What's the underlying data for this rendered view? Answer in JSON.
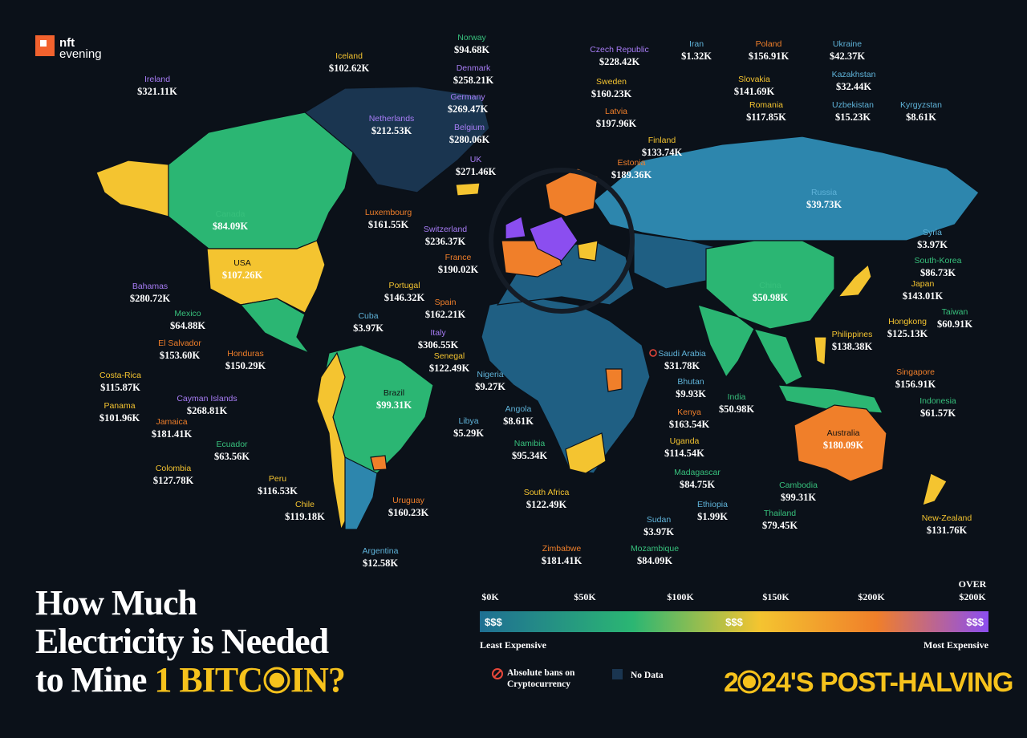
{
  "logo": {
    "line1": "nft",
    "line2": "evening"
  },
  "title": {
    "line1": "How Much",
    "line2": "Electricity is Needed",
    "line3": "to Mine",
    "highlight_start": "1 BITC",
    "highlight_end": "IN?"
  },
  "countries": [
    {
      "name": "Norway",
      "cost": "$94.68K"
    },
    {
      "name": "Czech Republic",
      "cost": "$228.42K"
    },
    {
      "name": "Iran",
      "cost": "$1.32K"
    },
    {
      "name": "Poland",
      "cost": "$156.91K"
    },
    {
      "name": "Ukraine",
      "cost": "$42.37K"
    },
    {
      "name": "Iceland",
      "cost": "$102.62K"
    },
    {
      "name": "Ireland",
      "cost": "$321.11K"
    },
    {
      "name": "Denmark",
      "cost": "$258.21K"
    },
    {
      "name": "Sweden",
      "cost": "$160.23K"
    },
    {
      "name": "Slovakia",
      "cost": "$141.69K"
    },
    {
      "name": "Kazakhstan",
      "cost": "$32.44K"
    },
    {
      "name": "Germany",
      "cost": "$269.47K"
    },
    {
      "name": "Netherlands",
      "cost": "$212.53K"
    },
    {
      "name": "Romania",
      "cost": "$117.85K"
    },
    {
      "name": "Uzbekistan",
      "cost": "$15.23K"
    },
    {
      "name": "Kyrgyzstan",
      "cost": "$8.61K"
    },
    {
      "name": "Latvia",
      "cost": "$197.96K"
    },
    {
      "name": "Belgium",
      "cost": "$280.06K"
    },
    {
      "name": "Finland",
      "cost": "$133.74K"
    },
    {
      "name": "UK",
      "cost": "$271.46K"
    },
    {
      "name": "Estonia",
      "cost": "$189.36K"
    },
    {
      "name": "Russia",
      "cost": "$39.73K"
    },
    {
      "name": "Luxembourg",
      "cost": "$161.55K"
    },
    {
      "name": "Canada",
      "cost": "$84.09K"
    },
    {
      "name": "Switzerland",
      "cost": "$236.37K"
    },
    {
      "name": "Syria",
      "cost": "$3.97K"
    },
    {
      "name": "France",
      "cost": "$190.02K"
    },
    {
      "name": "South-Korea",
      "cost": "$86.73K"
    },
    {
      "name": "USA",
      "cost": "$107.26K"
    },
    {
      "name": "Portugal",
      "cost": "$146.32K"
    },
    {
      "name": "China",
      "cost": "$50.98K"
    },
    {
      "name": "Japan",
      "cost": "$143.01K"
    },
    {
      "name": "Bahamas",
      "cost": "$280.72K"
    },
    {
      "name": "Spain",
      "cost": "$162.21K"
    },
    {
      "name": "Taiwan",
      "cost": "$60.91K"
    },
    {
      "name": "Mexico",
      "cost": "$64.88K"
    },
    {
      "name": "Cuba",
      "cost": "$3.97K"
    },
    {
      "name": "Hongkong",
      "cost": "$125.13K"
    },
    {
      "name": "Italy",
      "cost": "$306.55K"
    },
    {
      "name": "Philippines",
      "cost": "$138.38K"
    },
    {
      "name": "El Salvador",
      "cost": "$153.60K"
    },
    {
      "name": "Honduras",
      "cost": "$150.29K"
    },
    {
      "name": "Saudi Arabia",
      "cost": "$31.78K"
    },
    {
      "name": "Senegal",
      "cost": "$122.49K"
    },
    {
      "name": "Costa-Rica",
      "cost": "$115.87K"
    },
    {
      "name": "Nigeria",
      "cost": "$9.27K"
    },
    {
      "name": "Singapore",
      "cost": "$156.91K"
    },
    {
      "name": "Bhutan",
      "cost": "$9.93K"
    },
    {
      "name": "Brazil",
      "cost": "$99.31K"
    },
    {
      "name": "Panama",
      "cost": "$101.96K"
    },
    {
      "name": "Cayman Islands",
      "cost": "$268.81K"
    },
    {
      "name": "India",
      "cost": "$50.98K"
    },
    {
      "name": "Indonesia",
      "cost": "$61.57K"
    },
    {
      "name": "Angola",
      "cost": "$8.61K"
    },
    {
      "name": "Kenya",
      "cost": "$163.54K"
    },
    {
      "name": "Jamaica",
      "cost": "$181.41K"
    },
    {
      "name": "Libya",
      "cost": "$5.29K"
    },
    {
      "name": "Australia",
      "cost": "$180.09K"
    },
    {
      "name": "Uganda",
      "cost": "$114.54K"
    },
    {
      "name": "Ecuador",
      "cost": "$63.56K"
    },
    {
      "name": "Namibia",
      "cost": "$95.34K"
    },
    {
      "name": "Colombia",
      "cost": "$127.78K"
    },
    {
      "name": "Madagascar",
      "cost": "$84.75K"
    },
    {
      "name": "Peru",
      "cost": "$116.53K"
    },
    {
      "name": "Cambodia",
      "cost": "$99.31K"
    },
    {
      "name": "South Africa",
      "cost": "$122.49K"
    },
    {
      "name": "Chile",
      "cost": "$119.18K"
    },
    {
      "name": "Uruguay",
      "cost": "$160.23K"
    },
    {
      "name": "Ethiopia",
      "cost": "$1.99K"
    },
    {
      "name": "Thailand",
      "cost": "$79.45K"
    },
    {
      "name": "Sudan",
      "cost": "$3.97K"
    },
    {
      "name": "New-Zealand",
      "cost": "$131.76K"
    },
    {
      "name": "Argentina",
      "cost": "$12.58K"
    },
    {
      "name": "Zimbabwe",
      "cost": "$181.41K"
    },
    {
      "name": "Mozambique",
      "cost": "$84.09K"
    }
  ],
  "legend": {
    "over": "OVER",
    "scale": [
      "$0K",
      "$50K",
      "$100K",
      "$150K",
      "$200K",
      "$200K"
    ],
    "icons": [
      "$$$",
      "$$$",
      "$$$"
    ],
    "least": "Least Expensive",
    "most": "Most Expensive",
    "ban": "Absolute bans on Cryptocurrency",
    "no_data": "No Data"
  },
  "badge": {
    "start": "2",
    "end": "24'S POST-HALVING"
  }
}
